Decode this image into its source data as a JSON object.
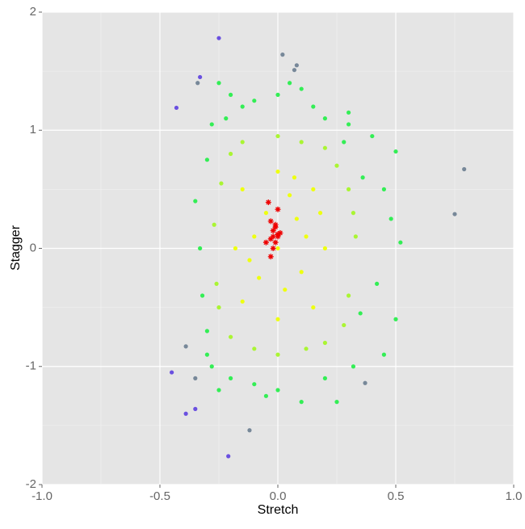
{
  "chart_data": {
    "type": "scatter",
    "x_label": "Stretch",
    "y_label": "Stagger",
    "xlim": [
      -1,
      1
    ],
    "ylim": [
      -2,
      2
    ],
    "xticks": [
      {
        "value": -1,
        "label": "-1.0"
      },
      {
        "value": -0.5,
        "label": "-0.5"
      },
      {
        "value": 0,
        "label": "0.0"
      },
      {
        "value": 0.5,
        "label": "0.5"
      },
      {
        "value": 1,
        "label": "1.0"
      }
    ],
    "yticks": [
      -2,
      -1,
      0,
      1,
      2
    ],
    "grid": true,
    "series": [
      {
        "color": "#33ee55",
        "marker": "dot",
        "x": [
          -0.25,
          -0.2,
          -0.1,
          0.0,
          0.1,
          0.15,
          0.2,
          0.28,
          0.3,
          0.4,
          0.5,
          0.45,
          0.48,
          0.52,
          0.42,
          0.5,
          0.45,
          0.32,
          0.2,
          0.1,
          0.0,
          -0.05,
          -0.1,
          -0.2,
          -0.28,
          -0.3,
          -0.32,
          -0.33,
          -0.35,
          -0.3,
          -0.28,
          -0.22,
          0.25,
          -0.25,
          0.36,
          -0.3,
          0.05,
          0.35,
          0.3,
          -0.15
        ],
        "values": [
          1.4,
          1.3,
          1.25,
          1.3,
          1.35,
          1.2,
          1.1,
          0.9,
          1.05,
          0.95,
          0.82,
          0.5,
          0.25,
          0.05,
          -0.3,
          -0.6,
          -0.9,
          -1.0,
          -1.1,
          -1.3,
          -1.2,
          -1.25,
          -1.15,
          -1.1,
          -1.0,
          -0.7,
          -0.4,
          0.0,
          0.4,
          0.75,
          1.05,
          1.1,
          -1.3,
          -1.2,
          0.6,
          -0.9,
          1.4,
          -0.55,
          1.15,
          1.2
        ]
      },
      {
        "color": "#aaf533",
        "marker": "dot",
        "x": [
          -0.2,
          0,
          0.2,
          0.3,
          0.33,
          0.3,
          0.2,
          0,
          -0.2,
          -0.26,
          -0.27,
          -0.24,
          0.1,
          -0.1,
          0.25,
          0.28,
          -0.15,
          0.12,
          -0.25,
          0.32
        ],
        "values": [
          0.8,
          0.95,
          0.85,
          0.5,
          0.1,
          -0.4,
          -0.8,
          -0.9,
          -0.75,
          -0.3,
          0.2,
          0.55,
          0.9,
          -0.85,
          0.7,
          -0.65,
          0.9,
          -0.85,
          -0.5,
          0.3
        ]
      },
      {
        "color": "#eeff11",
        "marker": "dot",
        "x": [
          -0.15,
          0,
          0.15,
          0.2,
          0.15,
          0,
          -0.15,
          -0.18,
          -0.05,
          0.08,
          0.1,
          -0.08,
          0,
          0.05,
          -0.1,
          0.12,
          0.03,
          -0.12,
          0.18,
          0.07
        ],
        "values": [
          0.5,
          0.65,
          0.5,
          0,
          -0.5,
          -0.6,
          -0.45,
          0,
          0.3,
          0.25,
          -0.2,
          -0.25,
          0,
          0.45,
          0.1,
          0.1,
          -0.35,
          -0.1,
          0.3,
          0.6
        ]
      },
      {
        "color": "#778899",
        "marker": "dot",
        "x": [
          0.02,
          0.08,
          0.07,
          -0.34,
          0.79,
          0.75,
          -0.12,
          -0.35,
          0.37,
          -0.39
        ],
        "values": [
          1.64,
          1.55,
          1.51,
          1.4,
          0.67,
          0.29,
          -1.54,
          -1.1,
          -1.14,
          -0.83
        ]
      },
      {
        "color": "#6a50e0",
        "marker": "dot",
        "x": [
          -0.25,
          -0.33,
          -0.43,
          -0.45,
          -0.39,
          -0.35,
          -0.21
        ],
        "values": [
          1.78,
          1.45,
          1.19,
          -1.05,
          -1.4,
          -1.36,
          -1.76
        ]
      },
      {
        "color": "#ee0000",
        "marker": "star",
        "x": [
          -0.04,
          0,
          -0.03,
          -0.01,
          -0.02,
          0,
          -0.03,
          -0.05,
          -0.01,
          0,
          -0.02,
          -0.03,
          -0.01,
          -0.02,
          0.01
        ],
        "values": [
          0.39,
          0.33,
          0.23,
          0.2,
          0.15,
          0.12,
          0.08,
          0.05,
          0.05,
          0.1,
          0.0,
          -0.07,
          0.18,
          0.1,
          0.13
        ]
      }
    ]
  }
}
